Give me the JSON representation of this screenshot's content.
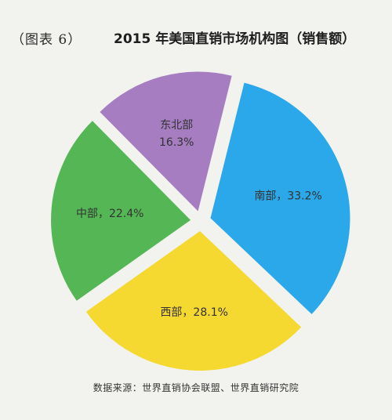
{
  "figure_label": "（图表 6）",
  "chart_data": {
    "type": "pie",
    "title": "2015 年美国直销市场机构图（销售额）",
    "slices": [
      {
        "label": "南部",
        "value": 33.2,
        "value_text": "33.2%",
        "color": "#2aa8ea",
        "label_text": "南部，33.2%"
      },
      {
        "label": "西部",
        "value": 28.1,
        "value_text": "28.1%",
        "color": "#f5d830",
        "label_text": "西部，28.1%"
      },
      {
        "label": "中部",
        "value": 22.4,
        "value_text": "22.4%",
        "color": "#55b656",
        "label_text": "中部，22.4%"
      },
      {
        "label": "东北部",
        "value": 16.3,
        "value_text": "16.3%",
        "color": "#a57dc0",
        "label_text": "东北部|16.3%"
      }
    ]
  },
  "source": "数据来源：世界直销协会联盟、世界直销研究院"
}
